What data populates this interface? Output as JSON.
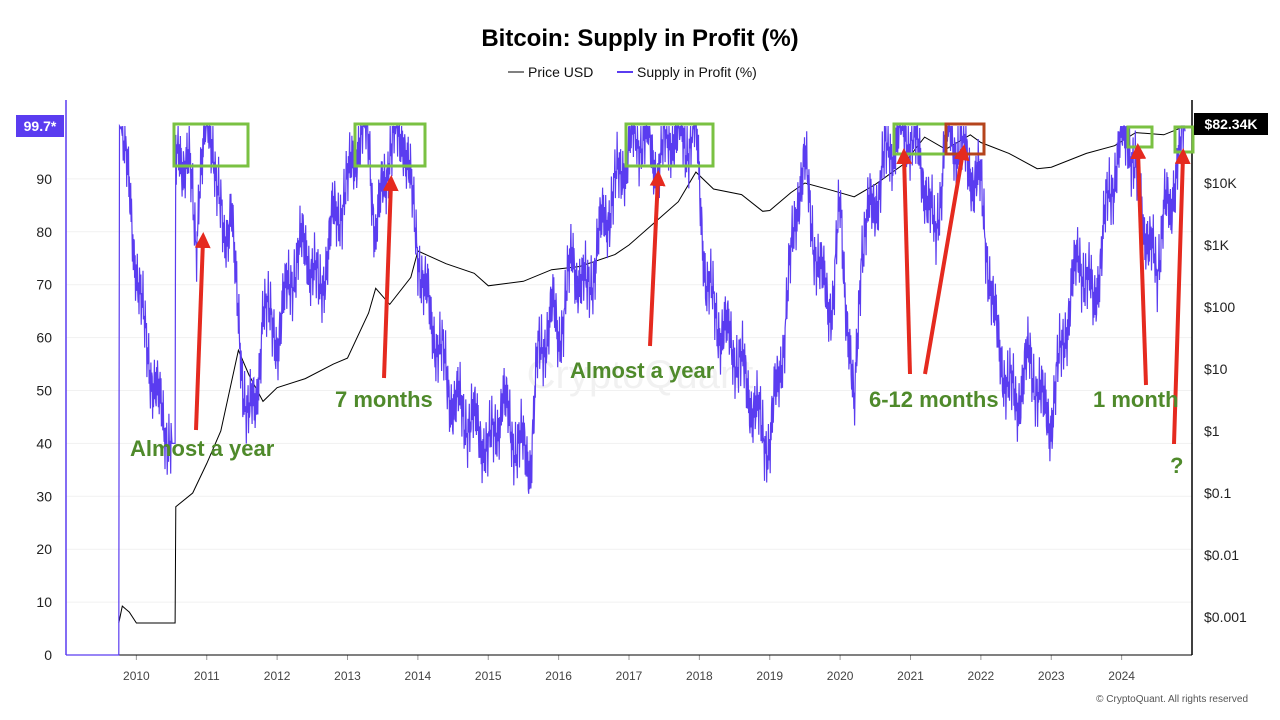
{
  "chart_data": {
    "type": "line",
    "title": "Bitcoin: Supply in Profit (%)",
    "legend": [
      {
        "name": "Price USD",
        "color": "#000000"
      },
      {
        "name": "Supply in Profit (%)",
        "color": "#5a3cf0"
      }
    ],
    "left_axis": {
      "ticks": [
        "0",
        "10",
        "20",
        "30",
        "40",
        "50",
        "60",
        "70",
        "80",
        "90"
      ],
      "ylim": [
        0,
        100
      ],
      "current_label": "99.7*",
      "current_value": 99.7
    },
    "right_axis": {
      "scale": "log",
      "ticks": [
        "$0.001",
        "$0.01",
        "$0.1",
        "$1",
        "$10",
        "$100",
        "$1K",
        "$10K"
      ],
      "current_label": "$82.34K",
      "current_value": 82340
    },
    "x_ticks": [
      "2010",
      "2011",
      "2012",
      "2013",
      "2014",
      "2015",
      "2016",
      "2017",
      "2018",
      "2019",
      "2020",
      "2021",
      "2022",
      "2023",
      "2024"
    ],
    "xlim": [
      2009.0,
      2025.0
    ],
    "series": [
      {
        "name": "Supply in Profit (%)",
        "x": [
          2009.0,
          2009.75,
          2009.76,
          2009.8,
          2009.95,
          2010.1,
          2010.3,
          2010.5,
          2010.55,
          2010.56,
          2010.6,
          2010.75,
          2010.85,
          2010.9,
          2011.0,
          2011.1,
          2011.25,
          2011.35,
          2011.45,
          2011.5,
          2011.6,
          2011.7,
          2011.8,
          2011.9,
          2012.0,
          2012.2,
          2012.4,
          2012.6,
          2012.8,
          2013.0,
          2013.1,
          2013.3,
          2013.4,
          2013.5,
          2013.6,
          2013.8,
          2013.95,
          2014.1,
          2014.3,
          2014.5,
          2014.7,
          2014.9,
          2015.0,
          2015.2,
          2015.4,
          2015.6,
          2015.7,
          2015.9,
          2016.0,
          2016.2,
          2016.4,
          2016.6,
          2016.8,
          2017.0,
          2017.2,
          2017.4,
          2017.6,
          2017.8,
          2017.95,
          2018.1,
          2018.3,
          2018.5,
          2018.7,
          2018.9,
          2019.0,
          2019.2,
          2019.4,
          2019.5,
          2019.7,
          2019.9,
          2020.0,
          2020.2,
          2020.3,
          2020.5,
          2020.7,
          2020.9,
          2021.0,
          2021.2,
          2021.35,
          2021.5,
          2021.7,
          2021.85,
          2022.0,
          2022.2,
          2022.4,
          2022.5,
          2022.7,
          2022.9,
          2023.0,
          2023.2,
          2023.4,
          2023.6,
          2023.8,
          2023.95,
          2024.1,
          2024.25,
          2024.4,
          2024.5,
          2024.6,
          2024.7,
          2024.8,
          2024.9
        ],
        "y": [
          0,
          0,
          100,
          99,
          80,
          62,
          48,
          40,
          40,
          99,
          96,
          92,
          78,
          92,
          99,
          97,
          75,
          88,
          60,
          52,
          48,
          44,
          68,
          62,
          60,
          72,
          78,
          68,
          82,
          88,
          96,
          99,
          78,
          88,
          96,
          99,
          82,
          68,
          58,
          48,
          45,
          42,
          38,
          48,
          40,
          37,
          55,
          65,
          60,
          75,
          68,
          80,
          88,
          96,
          99,
          92,
          99,
          97,
          99,
          70,
          62,
          58,
          50,
          42,
          40,
          60,
          88,
          92,
          72,
          66,
          85,
          44,
          78,
          86,
          96,
          99,
          99,
          90,
          78,
          99,
          96,
          92,
          88,
          62,
          50,
          48,
          56,
          46,
          45,
          62,
          76,
          66,
          85,
          95,
          99,
          86,
          78,
          70,
          88,
          80,
          98,
          99
        ]
      },
      {
        "name": "Price USD",
        "x": [
          2009.75,
          2009.8,
          2009.9,
          2010.0,
          2010.3,
          2010.55,
          2010.56,
          2010.8,
          2011.0,
          2011.2,
          2011.45,
          2011.6,
          2011.8,
          2012.0,
          2012.4,
          2012.8,
          2013.0,
          2013.3,
          2013.4,
          2013.6,
          2013.9,
          2014.0,
          2014.4,
          2014.8,
          2015.0,
          2015.5,
          2015.9,
          2016.3,
          2016.8,
          2017.0,
          2017.4,
          2017.7,
          2017.95,
          2018.2,
          2018.6,
          2018.9,
          2019.0,
          2019.3,
          2019.5,
          2019.9,
          2020.2,
          2020.5,
          2020.9,
          2021.2,
          2021.5,
          2021.85,
          2022.0,
          2022.4,
          2022.8,
          2023.0,
          2023.5,
          2023.9,
          2024.2,
          2024.6,
          2024.9
        ],
        "y": [
          0.0008,
          0.0015,
          0.0012,
          0.0008,
          0.0008,
          0.0008,
          0.06,
          0.1,
          0.3,
          1,
          20,
          8,
          3,
          5,
          7,
          12,
          15,
          80,
          200,
          110,
          300,
          800,
          500,
          350,
          220,
          260,
          400,
          450,
          700,
          1000,
          2500,
          5000,
          15000,
          8000,
          6500,
          3500,
          3600,
          7000,
          10000,
          7500,
          6000,
          9500,
          20000,
          55000,
          35000,
          60000,
          45000,
          30000,
          17000,
          18000,
          30000,
          40000,
          65000,
          60000,
          82340
        ]
      }
    ],
    "annotations": [
      "Almost a year",
      "7 months",
      "Almost a year",
      "6-12 months",
      "1 month",
      "?"
    ],
    "watermark": "CryptoQuant",
    "copyright": "© CryptoQuant. All rights reserved"
  }
}
